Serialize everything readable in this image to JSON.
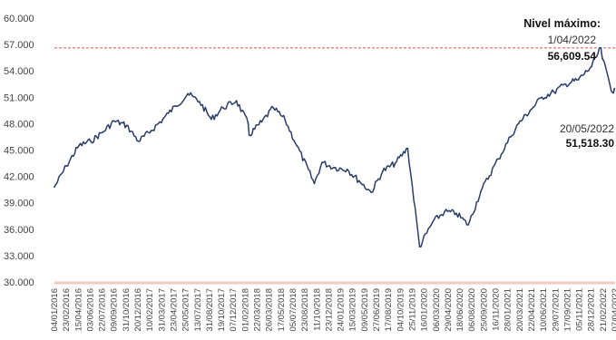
{
  "chart_data": {
    "type": "line",
    "title": "",
    "xlabel": "",
    "ylabel": "",
    "ylim": [
      30000,
      60000
    ],
    "grid": false,
    "yticks": [
      "60.000",
      "57.000",
      "54.000",
      "51.000",
      "48.000",
      "45.000",
      "42.000",
      "39.000",
      "36.000",
      "33.000",
      "30.000"
    ],
    "ytick_values": [
      60000,
      57000,
      54000,
      51000,
      48000,
      45000,
      42000,
      39000,
      36000,
      33000,
      30000
    ],
    "xticks": [
      "04/01/2016",
      "23/02/2016",
      "15/04/2016",
      "03/06/2016",
      "22/07/2016",
      "09/09/2016",
      "31/10/2016",
      "20/12/2016",
      "10/02/2017",
      "31/03/2017",
      "23/04/2017",
      "25/05/2017",
      "13/07/2017",
      "31/08/2017",
      "19/10/2017",
      "07/12/2017",
      "01/02/2018",
      "22/03/2018",
      "26/03/2018",
      "17/05/2018",
      "05/07/2018",
      "23/08/2018",
      "11/10/2018",
      "23/12/2018",
      "24/01/2019",
      "15/03/2019",
      "09/05/2019",
      "27/06/2019",
      "17/08/2019",
      "04/10/2019",
      "25/11/2019",
      "16/01/2020",
      "06/03/2020",
      "29/04/2020",
      "18/06/2020",
      "06/08/2020",
      "25/09/2020",
      "16/11/2020",
      "28/01/2021",
      "20/03/2021",
      "22/04/2021",
      "10/06/2021",
      "29/07/2021",
      "17/09/2021",
      "05/11/2021",
      "28/12/2021",
      "21/02/2022",
      "07/04/2022"
    ],
    "reference_line": {
      "value": 56609.54,
      "style": "dashed",
      "color": "#e0504a"
    },
    "baseline_color": "#f2c9c9",
    "series": [
      {
        "color": "#2b3d6b",
        "x": [
          "04/01/2016",
          "23/02/2016",
          "15/04/2016",
          "03/06/2016",
          "22/07/2016",
          "09/09/2016",
          "31/10/2016",
          "20/12/2016",
          "10/02/2017",
          "31/03/2017",
          "23/04/2017",
          "25/05/2017",
          "13/07/2017",
          "31/08/2017",
          "19/10/2017",
          "07/12/2017",
          "01/02/2018",
          "22/03/2018",
          "26/03/2018",
          "17/05/2018",
          "05/07/2018",
          "23/08/2018",
          "11/10/2018",
          "23/12/2018",
          "24/01/2019",
          "15/03/2019",
          "09/05/2019",
          "27/06/2019",
          "17/08/2019",
          "04/10/2019",
          "25/11/2019",
          "16/01/2020",
          "06/03/2020",
          "29/04/2020",
          "18/06/2020",
          "06/08/2020",
          "25/09/2020",
          "16/11/2020",
          "28/01/2021",
          "20/03/2021",
          "22/04/2021",
          "10/06/2021",
          "29/07/2021",
          "17/09/2021",
          "05/11/2021",
          "28/12/2021",
          "21/02/2022",
          "01/04/2022",
          "07/04/2022",
          "20/05/2022",
          "27/05/2022"
        ],
        "values": [
          40800,
          43200,
          45500,
          46000,
          47000,
          48300,
          47800,
          46000,
          47200,
          48500,
          49200,
          50000,
          51400,
          50500,
          48500,
          49800,
          50600,
          48000,
          46700,
          48200,
          49800,
          48400,
          45500,
          41200,
          43600,
          43000,
          42800,
          41500,
          40200,
          42600,
          43500,
          45200,
          34000,
          36800,
          38000,
          37800,
          36500,
          40300,
          44000,
          46500,
          48000,
          49500,
          51000,
          51600,
          52500,
          53000,
          54500,
          56609.54,
          55400,
          51518.3,
          52000
        ]
      }
    ],
    "annotations": [
      {
        "title": "Nivel máximo:",
        "date": "1/04/2022",
        "value": "56,609.54"
      },
      {
        "date": "20/05/2022",
        "value": "51,518.30"
      }
    ]
  }
}
